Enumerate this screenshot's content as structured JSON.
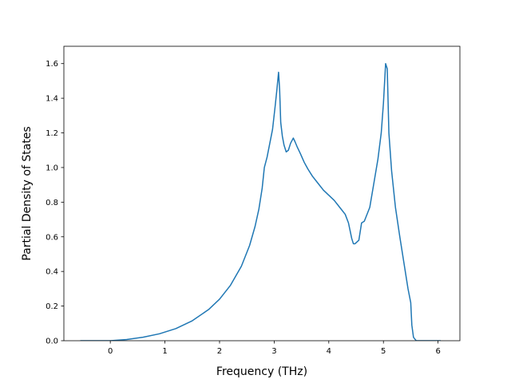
{
  "chart_data": {
    "type": "line",
    "title": "",
    "xlabel": "Frequency (THz)",
    "ylabel": "Partial Density of States",
    "xlim": [
      -0.85,
      6.4
    ],
    "ylim": [
      0.0,
      1.7
    ],
    "xticks": [
      "0",
      "1",
      "2",
      "3",
      "4",
      "5",
      "6"
    ],
    "yticks": [
      "0.0",
      "0.2",
      "0.4",
      "0.6",
      "0.8",
      "1.0",
      "1.2",
      "1.4",
      "1.6"
    ],
    "grid": false,
    "legend": "none",
    "series": [
      {
        "color": "#1f77b4",
        "x": [
          -0.55,
          0.0,
          0.3,
          0.6,
          0.9,
          1.2,
          1.5,
          1.8,
          2.0,
          2.2,
          2.4,
          2.55,
          2.65,
          2.72,
          2.78,
          2.82,
          2.87,
          2.92,
          2.97,
          3.02,
          3.05,
          3.08,
          3.1,
          3.12,
          3.15,
          3.18,
          3.22,
          3.26,
          3.3,
          3.35,
          3.38,
          3.42,
          3.48,
          3.55,
          3.62,
          3.7,
          3.8,
          3.9,
          4.0,
          4.1,
          4.2,
          4.3,
          4.36,
          4.42,
          4.45,
          4.48,
          4.55,
          4.6,
          4.65,
          4.75,
          4.82,
          4.9,
          4.96,
          5.0,
          5.04,
          5.07,
          5.1,
          5.15,
          5.22,
          5.3,
          5.38,
          5.45,
          5.5,
          5.52,
          5.55,
          5.6,
          6.05
        ],
        "y": [
          0.0,
          0.0,
          0.007,
          0.02,
          0.04,
          0.07,
          0.115,
          0.18,
          0.24,
          0.32,
          0.43,
          0.55,
          0.66,
          0.76,
          0.88,
          1.0,
          1.06,
          1.14,
          1.22,
          1.36,
          1.45,
          1.55,
          1.45,
          1.26,
          1.18,
          1.13,
          1.09,
          1.1,
          1.14,
          1.17,
          1.15,
          1.12,
          1.08,
          1.03,
          0.99,
          0.95,
          0.91,
          0.87,
          0.84,
          0.81,
          0.77,
          0.73,
          0.68,
          0.59,
          0.56,
          0.56,
          0.58,
          0.68,
          0.69,
          0.77,
          0.9,
          1.05,
          1.2,
          1.37,
          1.6,
          1.57,
          1.2,
          0.98,
          0.77,
          0.6,
          0.44,
          0.3,
          0.22,
          0.09,
          0.02,
          0.0,
          0.0
        ]
      }
    ]
  }
}
